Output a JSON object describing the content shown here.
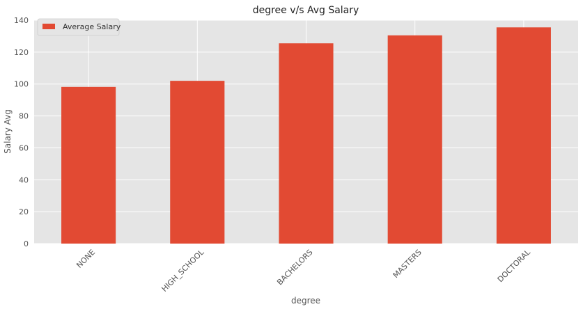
{
  "chart_data": {
    "type": "bar",
    "title": "degree v/s Avg Salary",
    "xlabel": "degree",
    "ylabel": "Salary Avg",
    "categories": [
      "NONE",
      "HIGH_SCHOOL",
      "BACHELORS",
      "MASTERS",
      "DOCTORAL"
    ],
    "series": [
      {
        "name": "Average Salary",
        "values": [
          98.2,
          102.0,
          125.5,
          130.5,
          135.5
        ]
      }
    ],
    "ylim": [
      0,
      140
    ],
    "yticks": [
      0,
      20,
      40,
      60,
      80,
      100,
      120,
      140
    ],
    "grid": true,
    "legend": "top-left",
    "colors": {
      "bar": "#E24A33",
      "background": "#E5E5E5",
      "grid": "#FFFFFF"
    }
  }
}
